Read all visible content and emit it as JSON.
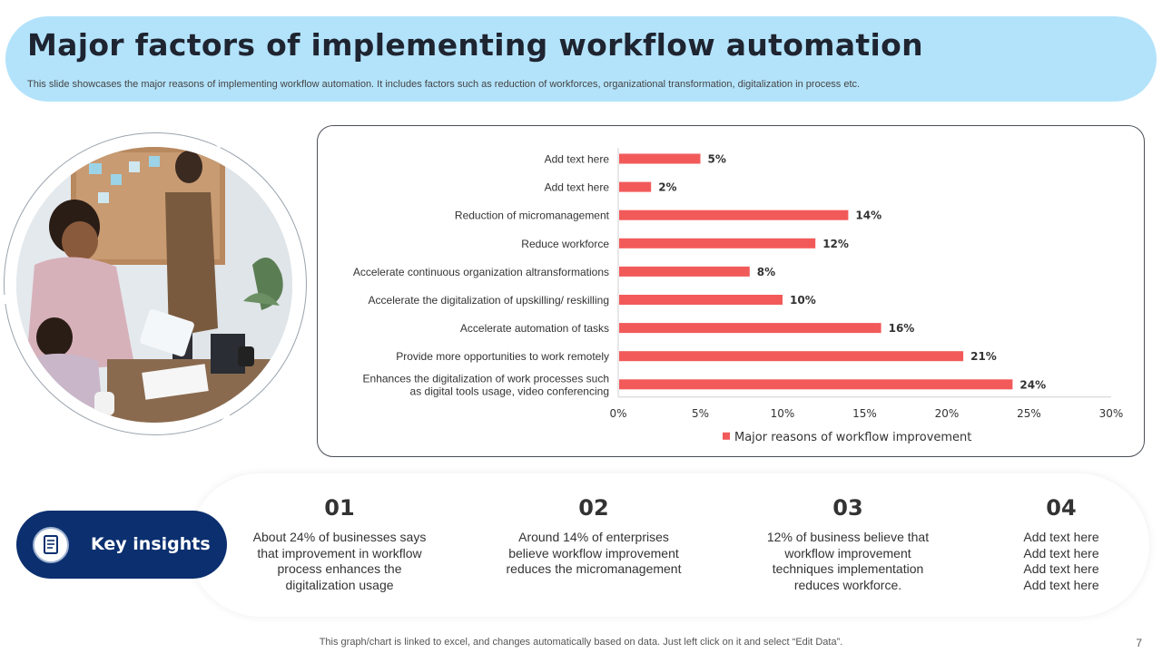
{
  "header": {
    "title": "Major factors of implementing workflow automation",
    "subtitle": "This slide showcases the major reasons of implementing workflow automation. It includes factors such as reduction of workforces, organizational transformation, digitalization in process etc."
  },
  "colors": {
    "bar": "#f25a5a",
    "header_bg": "#b3e3fb",
    "key_pill": "#0b2f6f"
  },
  "chart_data": {
    "type": "bar",
    "orientation": "horizontal",
    "categories": [
      [
        "Add text here"
      ],
      [
        "Add text here"
      ],
      [
        "Reduction of micromanagement"
      ],
      [
        "Reduce workforce"
      ],
      [
        "Accelerate continuous organization altransformations"
      ],
      [
        "Accelerate the digitalization of upskilling/ reskilling"
      ],
      [
        "Accelerate automation of tasks"
      ],
      [
        "Provide more opportunities to work remotely"
      ],
      [
        "Enhances the digitalization of work processes such",
        "as digital tools usage, video conferencing"
      ]
    ],
    "series": [
      {
        "name": "Major reasons of workflow improvement",
        "values": [
          5,
          2,
          14,
          12,
          8,
          10,
          16,
          21,
          24
        ]
      }
    ],
    "value_labels": [
      "5%",
      "2%",
      "14%",
      "12%",
      "8%",
      "10%",
      "16%",
      "21%",
      "24%"
    ],
    "xlim": [
      0,
      30
    ],
    "xticks": [
      0,
      5,
      10,
      15,
      20,
      25,
      30
    ],
    "xtick_labels": [
      "0%",
      "5%",
      "10%",
      "15%",
      "20%",
      "25%",
      "30%"
    ],
    "grid": false,
    "legend_position": "bottom"
  },
  "insights": {
    "label": "Key insights",
    "items": [
      {
        "number": "01",
        "text": [
          "About 24% of businesses says",
          "that improvement in workflow",
          "process enhances the",
          "digitalization usage"
        ]
      },
      {
        "number": "02",
        "text": [
          "Around 14% of enterprises",
          "believe workflow improvement",
          "reduces the micromanagement"
        ]
      },
      {
        "number": "03",
        "text": [
          "12% of business believe that",
          "workflow improvement",
          "techniques implementation",
          "reduces workforce."
        ]
      },
      {
        "number": "04",
        "text": [
          "Add text here",
          "Add text here",
          "Add text here",
          "Add text here"
        ]
      }
    ]
  },
  "icons": {
    "key_insights": "document-icon",
    "photo": "office-meeting-photo"
  },
  "footer": {
    "note": "This graph/chart is linked to excel, and changes automatically based on data. Just left click on it and select “Edit Data”.",
    "page_number": "7"
  }
}
